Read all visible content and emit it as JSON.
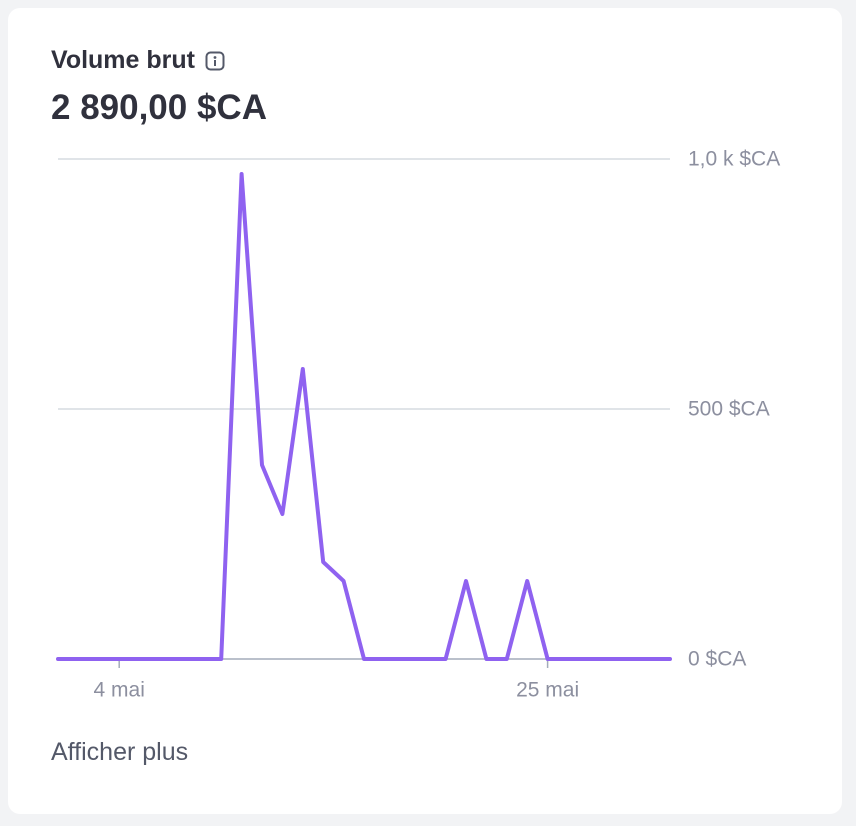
{
  "header": {
    "title": "Volume brut",
    "total": "2 890,00 $CA"
  },
  "chart_data": {
    "type": "line",
    "categories": [
      null,
      null,
      null,
      "4 mai",
      null,
      null,
      null,
      null,
      null,
      null,
      null,
      null,
      null,
      null,
      null,
      null,
      null,
      null,
      null,
      null,
      null,
      null,
      null,
      null,
      "25 mai",
      null,
      null,
      null,
      null,
      null,
      null
    ],
    "series": [
      {
        "color": "#8f62f0",
        "values": [
          0,
          0,
          0,
          0,
          0,
          0,
          0,
          0,
          0,
          970,
          388,
          290,
          580,
          194,
          156,
          0,
          0,
          0,
          0,
          0,
          156,
          0,
          0,
          156,
          0,
          0,
          0,
          0,
          0,
          0,
          0
        ]
      }
    ],
    "ylim": [
      0,
      1000
    ],
    "yticks": [
      {
        "value": 0,
        "label": "0 $CA"
      },
      {
        "value": 500,
        "label": "500 $CA"
      },
      {
        "value": 1000,
        "label": "1,0 k $CA"
      }
    ],
    "grid": true
  },
  "footer": {
    "link": "Afficher plus"
  }
}
